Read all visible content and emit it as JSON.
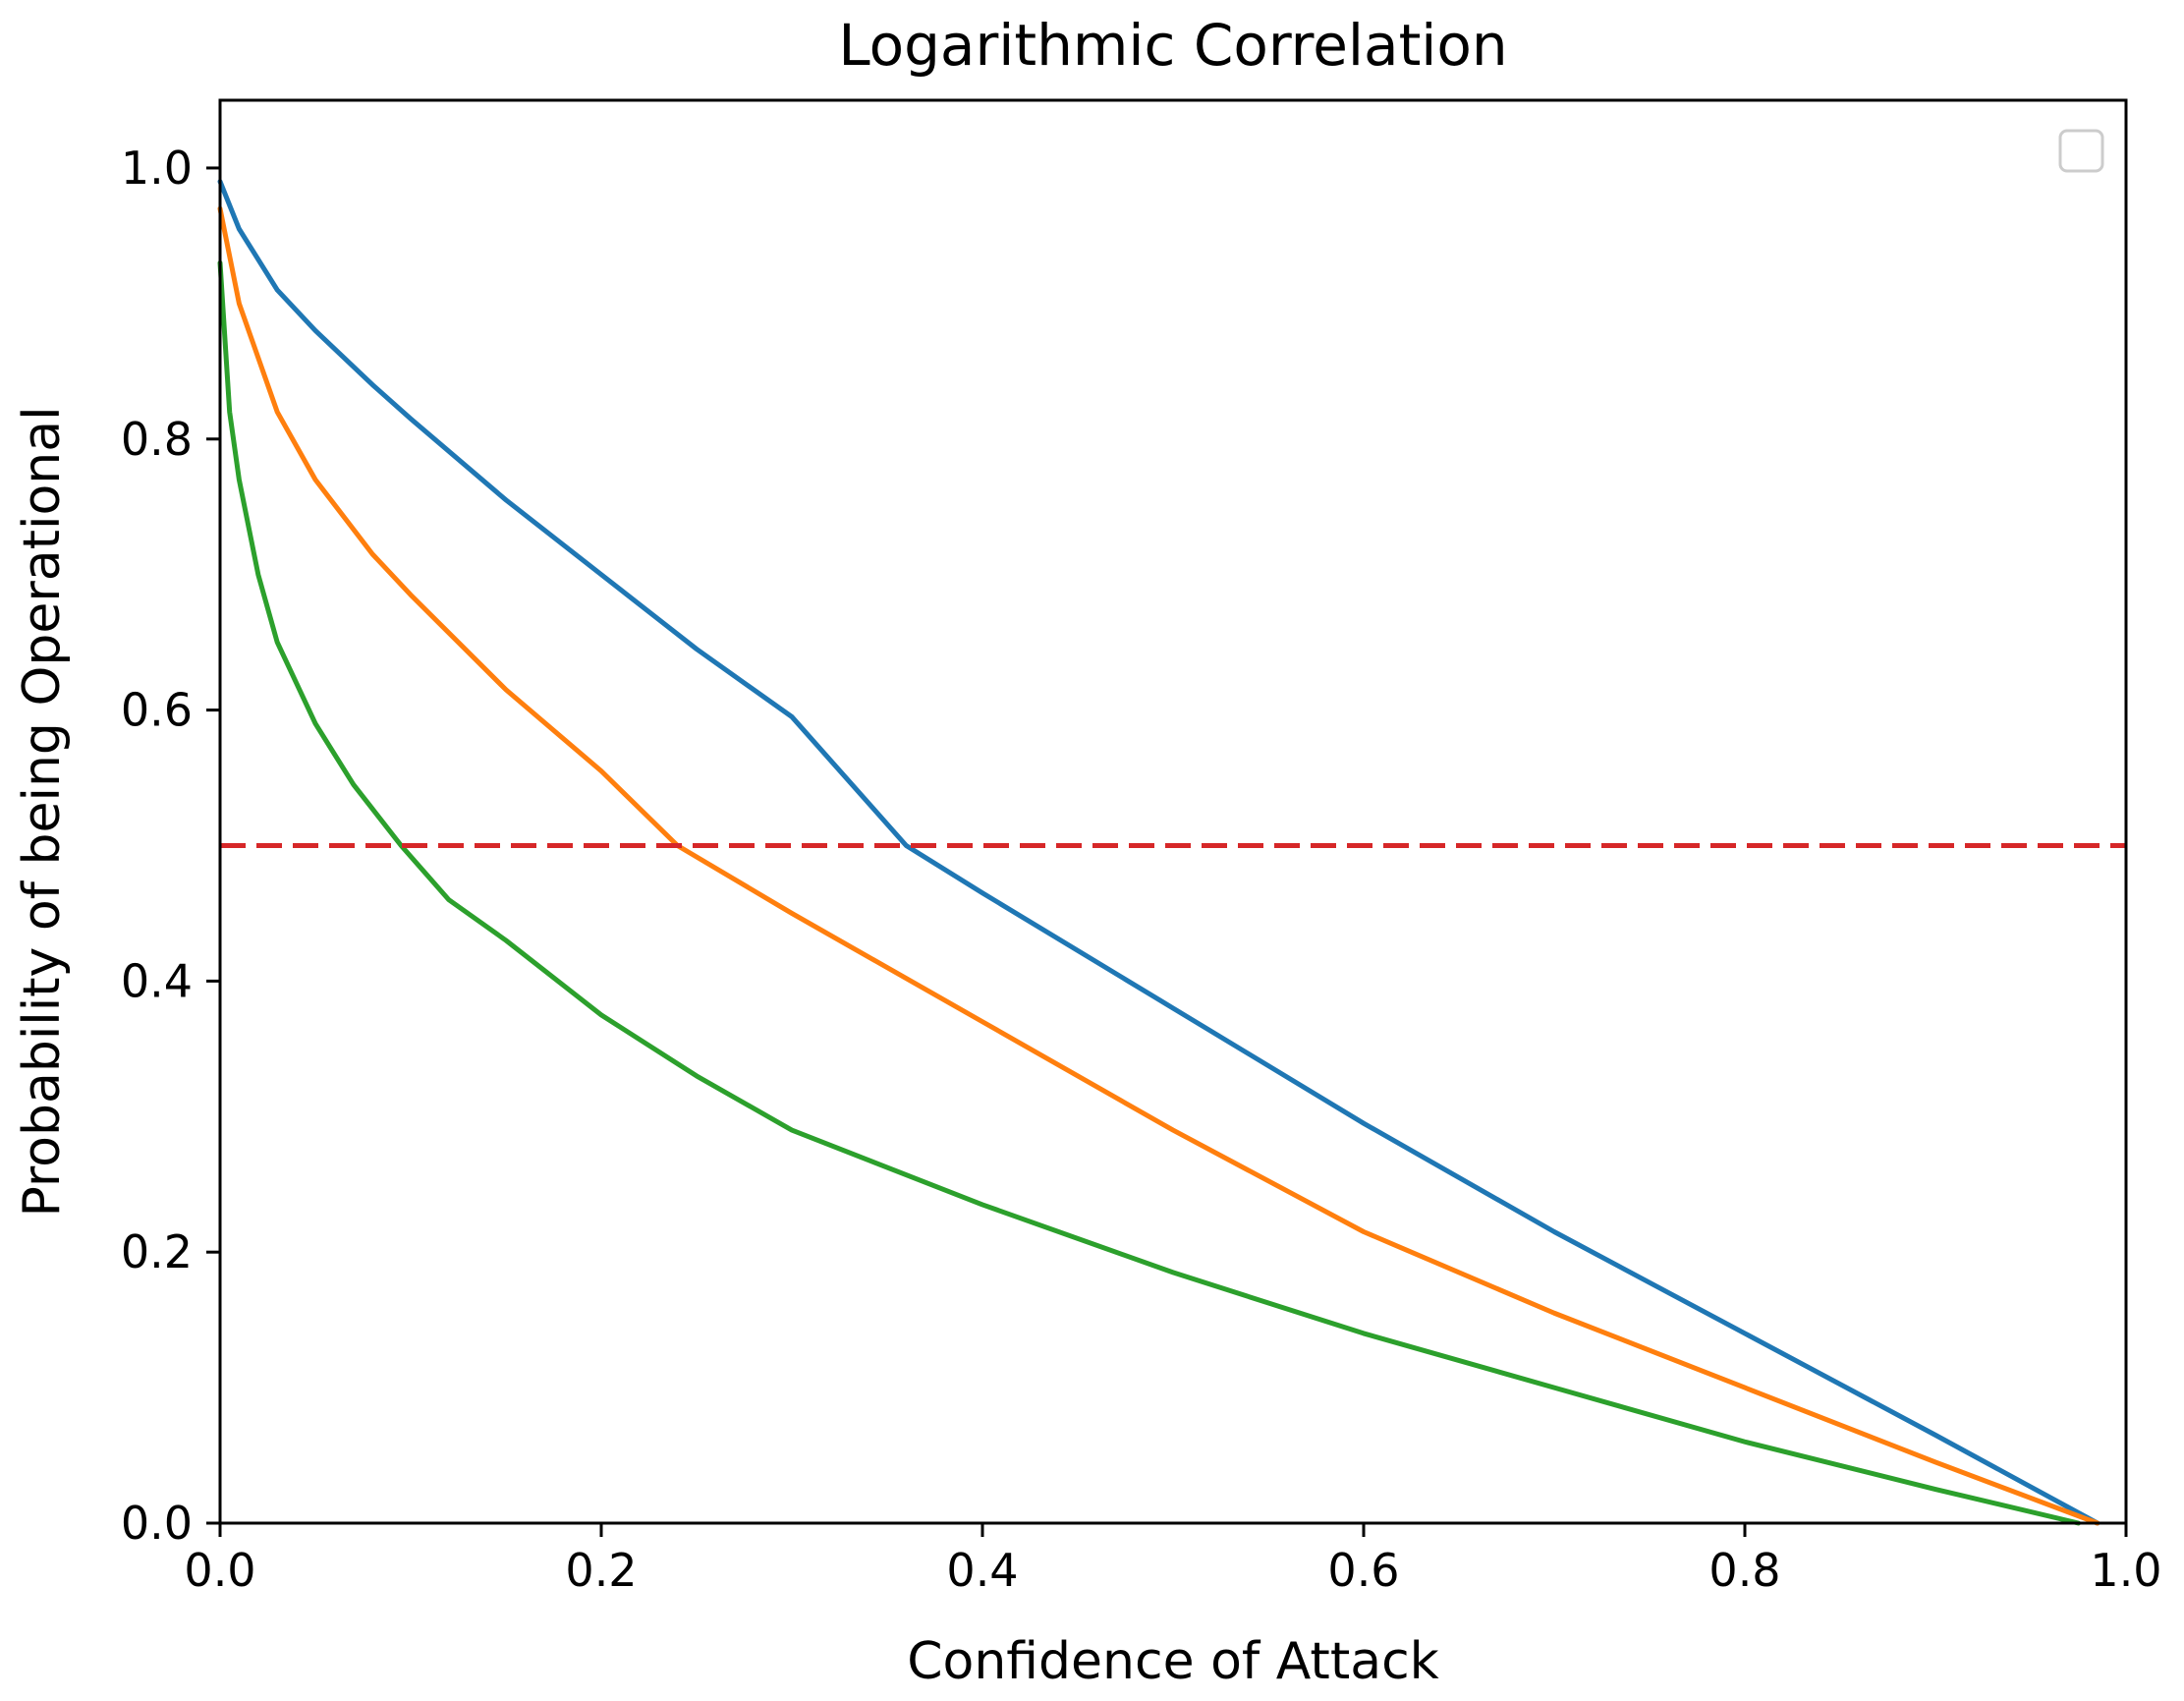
{
  "chart_data": {
    "type": "line",
    "title": "Logarithmic Correlation",
    "xlabel": "Confidence of Attack",
    "ylabel": "Probability of being Operational",
    "xlim": [
      0.0,
      1.0
    ],
    "ylim": [
      0.0,
      1.05
    ],
    "xticks": [
      0.0,
      0.2,
      0.4,
      0.6,
      0.8,
      1.0
    ],
    "yticks": [
      0.0,
      0.2,
      0.4,
      0.6,
      0.8,
      1.0
    ],
    "xtick_labels": [
      "0.0",
      "0.2",
      "0.4",
      "0.6",
      "0.8",
      "1.0"
    ],
    "ytick_labels": [
      "0.0",
      "0.2",
      "0.4",
      "0.6",
      "0.8",
      "1.0"
    ],
    "grid": false,
    "legend": {
      "placement": "upper right",
      "entries": []
    },
    "series": [
      {
        "name": "series-blue",
        "color": "#1f77b4",
        "x": [
          0.0,
          0.01,
          0.03,
          0.05,
          0.08,
          0.1,
          0.15,
          0.2,
          0.25,
          0.3,
          0.36,
          0.4,
          0.5,
          0.6,
          0.7,
          0.8,
          0.9,
          0.985
        ],
        "y": [
          0.99,
          0.955,
          0.91,
          0.88,
          0.84,
          0.815,
          0.755,
          0.7,
          0.645,
          0.595,
          0.5,
          0.465,
          0.38,
          0.295,
          0.215,
          0.14,
          0.065,
          0.0
        ]
      },
      {
        "name": "series-orange",
        "color": "#ff7f0e",
        "x": [
          0.0,
          0.01,
          0.03,
          0.05,
          0.08,
          0.1,
          0.15,
          0.2,
          0.24,
          0.3,
          0.4,
          0.5,
          0.6,
          0.7,
          0.8,
          0.9,
          0.985
        ],
        "y": [
          0.97,
          0.9,
          0.82,
          0.77,
          0.715,
          0.685,
          0.615,
          0.555,
          0.5,
          0.45,
          0.37,
          0.29,
          0.215,
          0.155,
          0.1,
          0.045,
          0.0
        ]
      },
      {
        "name": "series-green",
        "color": "#2ca02c",
        "x": [
          0.0,
          0.005,
          0.01,
          0.02,
          0.03,
          0.05,
          0.07,
          0.095,
          0.12,
          0.15,
          0.2,
          0.25,
          0.3,
          0.4,
          0.5,
          0.6,
          0.7,
          0.8,
          0.9,
          0.975
        ],
        "y": [
          0.93,
          0.82,
          0.77,
          0.7,
          0.65,
          0.59,
          0.545,
          0.5,
          0.46,
          0.43,
          0.375,
          0.33,
          0.29,
          0.235,
          0.185,
          0.14,
          0.1,
          0.06,
          0.025,
          0.0
        ]
      },
      {
        "name": "threshold",
        "color": "#d62728",
        "dashed": true,
        "x": [
          0.0,
          1.0
        ],
        "y": [
          0.5,
          0.5
        ]
      }
    ]
  }
}
